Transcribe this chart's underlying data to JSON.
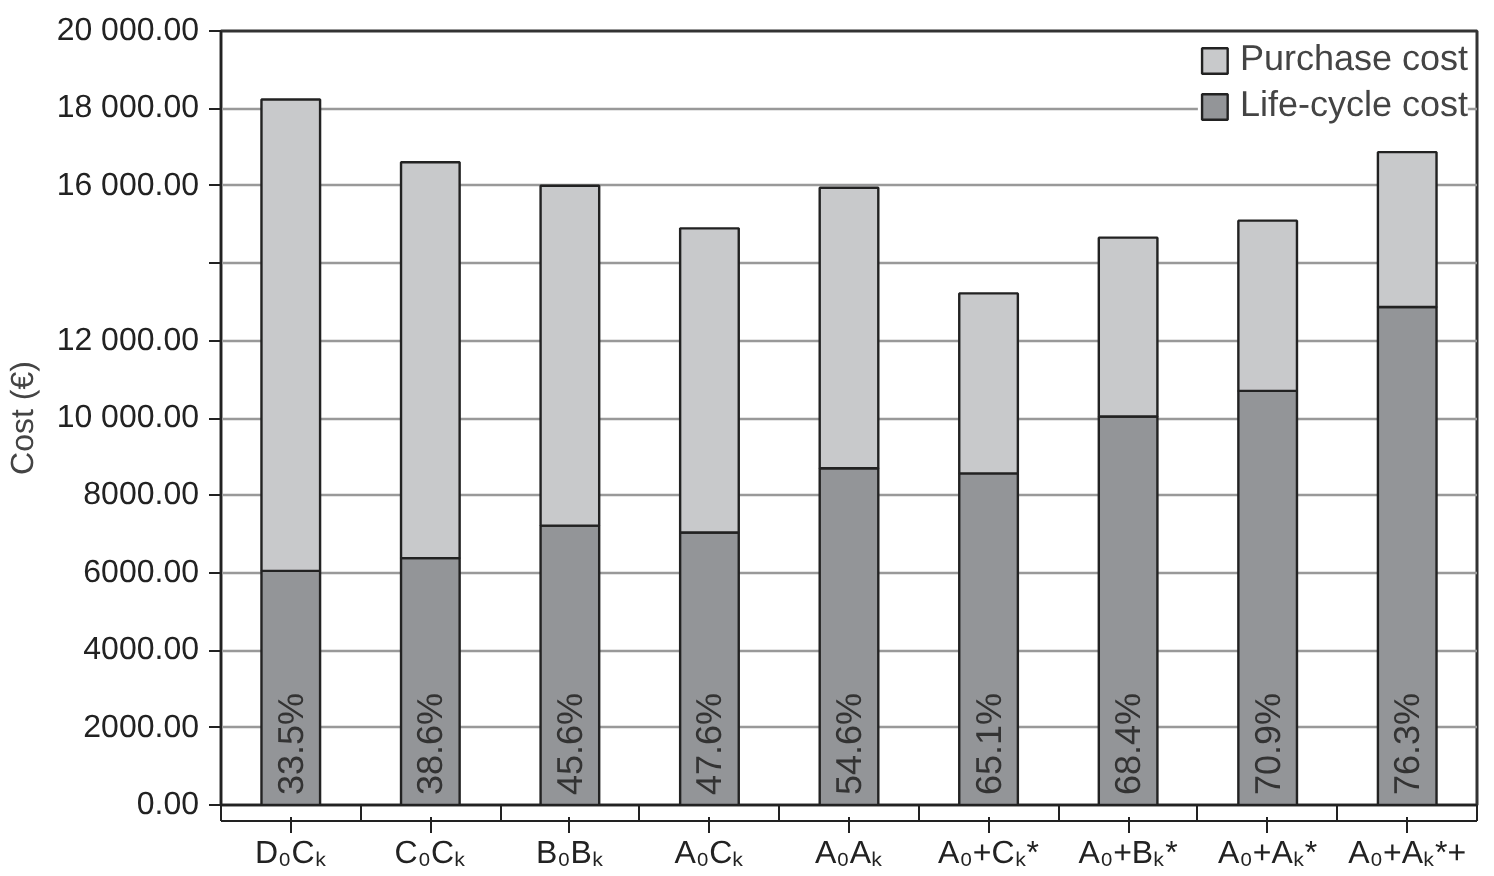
{
  "chart_data": {
    "type": "bar",
    "stacked": true,
    "ylabel": "Cost (€)",
    "categories": [
      "D₀Cₖ",
      "C₀Cₖ",
      "B₀Bₖ",
      "A₀Cₖ",
      "A₀Aₖ",
      "A₀+Cₖ*",
      "A₀+Bₖ*",
      "A₀+Aₖ*",
      "A₀+Aₖ*+"
    ],
    "series": [
      {
        "name": "Life-cycle cost",
        "color": "#939598",
        "values": [
          6050,
          6380,
          7220,
          7040,
          8700,
          8570,
          10040,
          10700,
          12870
        ]
      },
      {
        "name": "Purchase cost",
        "color": "#c8c9cb",
        "values": [
          12180,
          10230,
          8780,
          7860,
          7250,
          4650,
          4620,
          4400,
          4000
        ]
      }
    ],
    "ylim": [
      0,
      20000
    ],
    "yticks": [
      {
        "value": 0,
        "label": "0.00"
      },
      {
        "value": 2000,
        "label": "2000.00"
      },
      {
        "value": 4000,
        "label": "4000.00"
      },
      {
        "value": 6000,
        "label": "6000.00"
      },
      {
        "value": 8000,
        "label": "8000.00"
      },
      {
        "value": 10000,
        "label": "10 000.00"
      },
      {
        "value": 12000,
        "label": "12 000.00"
      },
      {
        "value": 14000,
        "label": null
      },
      {
        "value": 16000,
        "label": "16 000.00"
      },
      {
        "value": 18000,
        "label": "18 000.00"
      },
      {
        "value": 20000,
        "label": "20 000.00"
      }
    ],
    "annotations": [
      {
        "text": "33.5%",
        "x": "D₀Cₖ",
        "y": 0
      },
      {
        "text": "38.6%",
        "x": "C₀Cₖ",
        "y": 0
      },
      {
        "text": "45.6%",
        "x": "B₀Bₖ",
        "y": 0
      },
      {
        "text": "47.6%",
        "x": "A₀Cₖ",
        "y": 0
      },
      {
        "text": "54.6%",
        "x": "A₀Aₖ",
        "y": 0
      },
      {
        "text": "65.1%",
        "x": "A₀+Cₖ*",
        "y": 0
      },
      {
        "text": "68.4%",
        "x": "A₀+Bₖ*",
        "y": 0
      },
      {
        "text": "70.9%",
        "x": "A₀+Aₖ*",
        "y": 0
      },
      {
        "text": "76.3%",
        "x": "A₀+Aₖ*+",
        "y": 0
      }
    ],
    "grid": "y",
    "legend": "top right"
  }
}
